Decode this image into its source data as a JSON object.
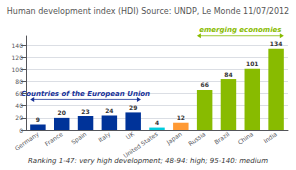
{
  "chart_data": {
    "type": "bar",
    "title": "Human development index (HDI) Source: UNDP, Le Monde 11/07/2012",
    "subtitle": "Ranking 1-47: very high development; 48-94: high; 95-140: medium",
    "categories": [
      "Germany",
      "France",
      "Spain",
      "Italy",
      "UK",
      "United States",
      "Japan",
      "Russia",
      "Brazil",
      "China",
      "India"
    ],
    "values": [
      9,
      20,
      23,
      24,
      29,
      4,
      12,
      66,
      84,
      101,
      134
    ],
    "colors": [
      "#003399",
      "#003399",
      "#003399",
      "#003399",
      "#003399",
      "#00ccdd",
      "#ff9933",
      "#88bb00",
      "#88bb00",
      "#88bb00",
      "#88bb00"
    ],
    "ylim": [
      0,
      155
    ],
    "yticks": [
      0,
      20,
      40,
      60,
      80,
      100,
      120,
      140
    ],
    "grid": true,
    "data_labels": true,
    "annotations": [
      {
        "text": "Countries of the European Union",
        "color": "#1a3399",
        "from": "Germany",
        "to": "UK"
      },
      {
        "text": "emerging economies",
        "color": "#88bb00",
        "from": "Russia",
        "to": "India"
      }
    ]
  }
}
